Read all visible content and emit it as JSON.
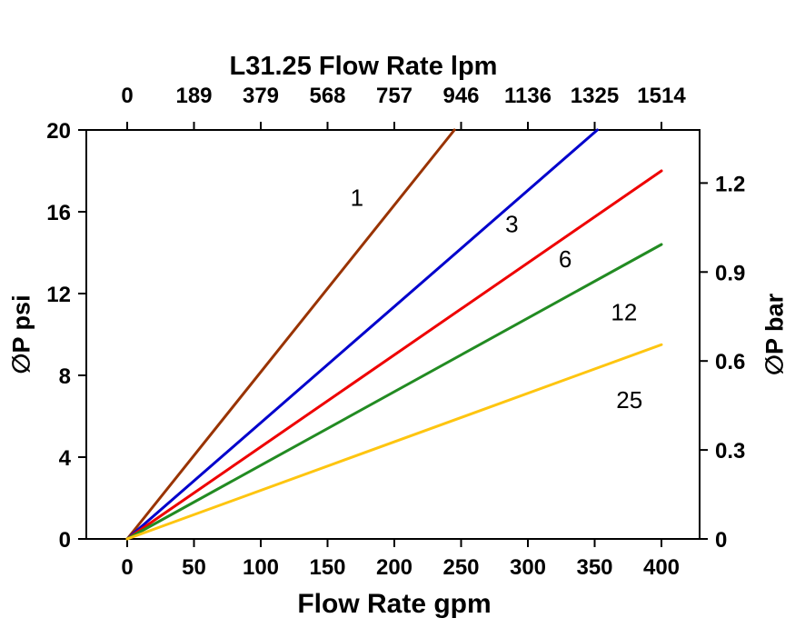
{
  "chart_data": {
    "type": "line",
    "title": "L31.25 Flow Rate lpm",
    "xlabel_bottom": "Flow Rate gpm",
    "ylabel_left": "∅P psi",
    "ylabel_right": "∅P bar",
    "x_ticks_gpm": [
      0,
      50,
      100,
      150,
      200,
      250,
      300,
      350,
      400
    ],
    "x_ticks_lpm": [
      "0",
      "189",
      "379",
      "568",
      "757",
      "946",
      "1136",
      "1325",
      "1514"
    ],
    "y_ticks_psi": [
      0,
      4,
      8,
      12,
      16,
      20
    ],
    "y_ticks_bar_labels": [
      "0",
      "0.3",
      "0.6",
      "0.9",
      "1.2"
    ],
    "y_ticks_bar_values": [
      0,
      0.3,
      0.6,
      0.9,
      1.2
    ],
    "psi_per_bar": 14.5038,
    "xlim_gpm": [
      0,
      400
    ],
    "ylim_psi": [
      0,
      20
    ],
    "grid": false,
    "series": [
      {
        "name": "1",
        "color": "#993300",
        "points": [
          [
            0,
            0
          ],
          [
            245,
            20
          ]
        ],
        "label_pos": [
          172,
          16.3
        ]
      },
      {
        "name": "3",
        "color": "#0000cc",
        "points": [
          [
            0,
            0
          ],
          [
            352,
            20
          ]
        ],
        "label_pos": [
          288,
          15.0
        ]
      },
      {
        "name": "6",
        "color": "#ee0000",
        "points": [
          [
            0,
            0
          ],
          [
            400,
            18.0
          ]
        ],
        "label_pos": [
          328,
          13.3
        ]
      },
      {
        "name": "12",
        "color": "#228b22",
        "points": [
          [
            0,
            0
          ],
          [
            400,
            14.4
          ]
        ],
        "label_pos": [
          372,
          10.7
        ]
      },
      {
        "name": "25",
        "color": "#fec510",
        "points": [
          [
            0,
            0
          ],
          [
            400,
            9.5
          ]
        ],
        "label_pos": [
          376,
          6.4
        ]
      }
    ]
  }
}
